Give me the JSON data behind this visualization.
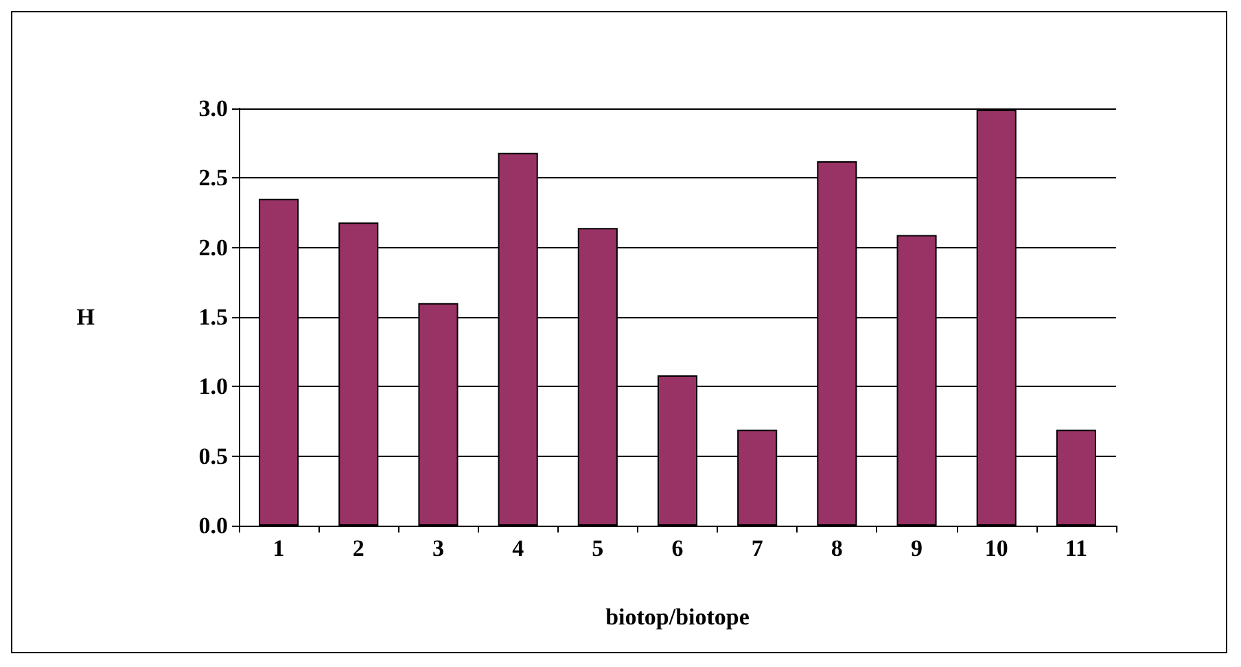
{
  "chart_data": {
    "type": "bar",
    "xlabel": "biotop/biotope",
    "ylabel": "H",
    "categories": [
      "1",
      "2",
      "3",
      "4",
      "5",
      "6",
      "7",
      "8",
      "9",
      "10",
      "11"
    ],
    "values": [
      2.35,
      2.18,
      1.6,
      2.68,
      2.14,
      1.08,
      0.69,
      2.62,
      2.09,
      2.99,
      0.69
    ],
    "color": "#993366",
    "ylim": [
      0,
      3
    ],
    "yticks": [
      {
        "value": 0,
        "label": "0.0"
      },
      {
        "value": 0.5,
        "label": "0.5"
      },
      {
        "value": 1,
        "label": "1.0"
      },
      {
        "value": 1.5,
        "label": "1.5"
      },
      {
        "value": 2,
        "label": "2.0"
      },
      {
        "value": 2.5,
        "label": "2.5"
      },
      {
        "value": 3,
        "label": "3.0"
      }
    ],
    "grid": true
  }
}
